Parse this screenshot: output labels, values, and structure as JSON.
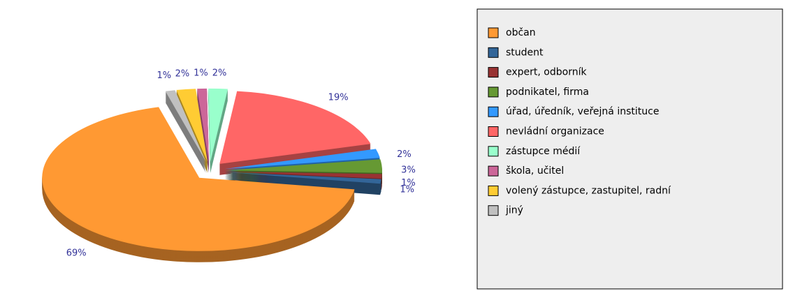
{
  "chart_data": {
    "type": "pie",
    "categories": [
      "občan",
      "student",
      "expert, odborník",
      "podnikatel, firma",
      "úřad, úředník, veřejná instituce",
      "nevládní organizace",
      "zástupce médií",
      "škola, učitel",
      "volený zástupce, zastupitel, radní",
      "jiný"
    ],
    "values": [
      69,
      1,
      1,
      3,
      2,
      19,
      2,
      1,
      2,
      1
    ],
    "value_labels": [
      "69%",
      "1%",
      "1%",
      "3%",
      "2%",
      "19%",
      "2%",
      "1%",
      "2%",
      "1%"
    ],
    "colors": [
      "#ff9933",
      "#336699",
      "#993333",
      "#669933",
      "#3399ff",
      "#ff6666",
      "#99ffcc",
      "#cc6699",
      "#ffcc33",
      "#c0c0c0"
    ],
    "legend": "right"
  }
}
